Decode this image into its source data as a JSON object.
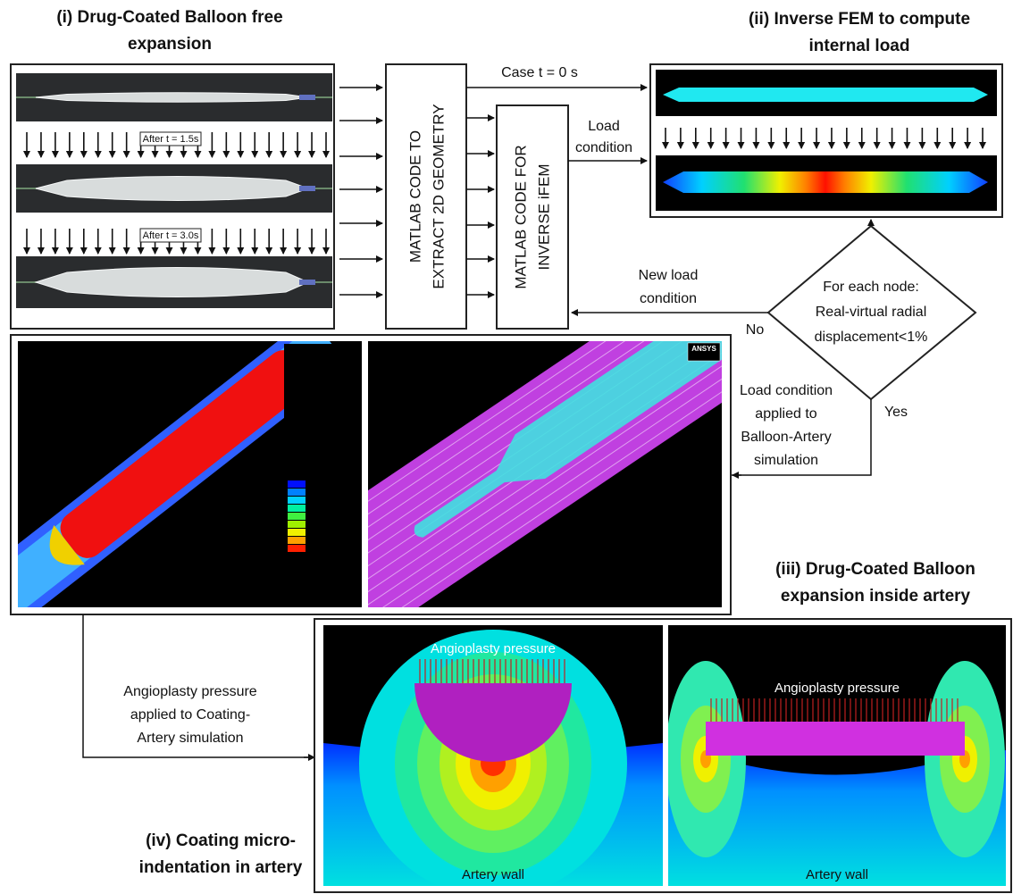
{
  "panel_i": {
    "title": [
      "(i) Drug-Coated Balloon free",
      "expansion"
    ],
    "time_labels": [
      "After t = 1.5s",
      "After t = 3.0s"
    ]
  },
  "matlab_boxes": [
    {
      "lines": [
        "MATLAB CODE TO",
        "EXTRACT 2D GEOMETRY"
      ]
    },
    {
      "lines": [
        "MATLAB CODE FOR",
        "INVERSE iFEM"
      ]
    }
  ],
  "edges": {
    "case": "Case t = 0 s",
    "load": [
      "Load",
      "condition"
    ],
    "new_load": [
      "New load",
      "condition"
    ],
    "no": "No",
    "yes": "Yes",
    "applied": [
      "Load condition",
      "applied to",
      "Balloon-Artery",
      "simulation"
    ],
    "angioplasty": [
      "Angioplasty pressure",
      "applied to Coating-",
      "Artery simulation"
    ]
  },
  "panel_ii": {
    "title": [
      "(ii) Inverse FEM to compute",
      "internal load"
    ]
  },
  "decision": {
    "lines": [
      "For each node:",
      "Real-virtual radial",
      "displacement<1%"
    ]
  },
  "panel_iii": {
    "title": [
      "(iii) Drug-Coated Balloon",
      "expansion inside artery"
    ],
    "logo": "ANSYS"
  },
  "panel_iv": {
    "title": [
      "(iv) Coating micro-",
      "indentation in artery"
    ],
    "sims": [
      {
        "load": "Angioplasty pressure",
        "wall": "Artery wall"
      },
      {
        "load": "Angioplasty pressure",
        "wall": "Artery wall"
      }
    ]
  }
}
